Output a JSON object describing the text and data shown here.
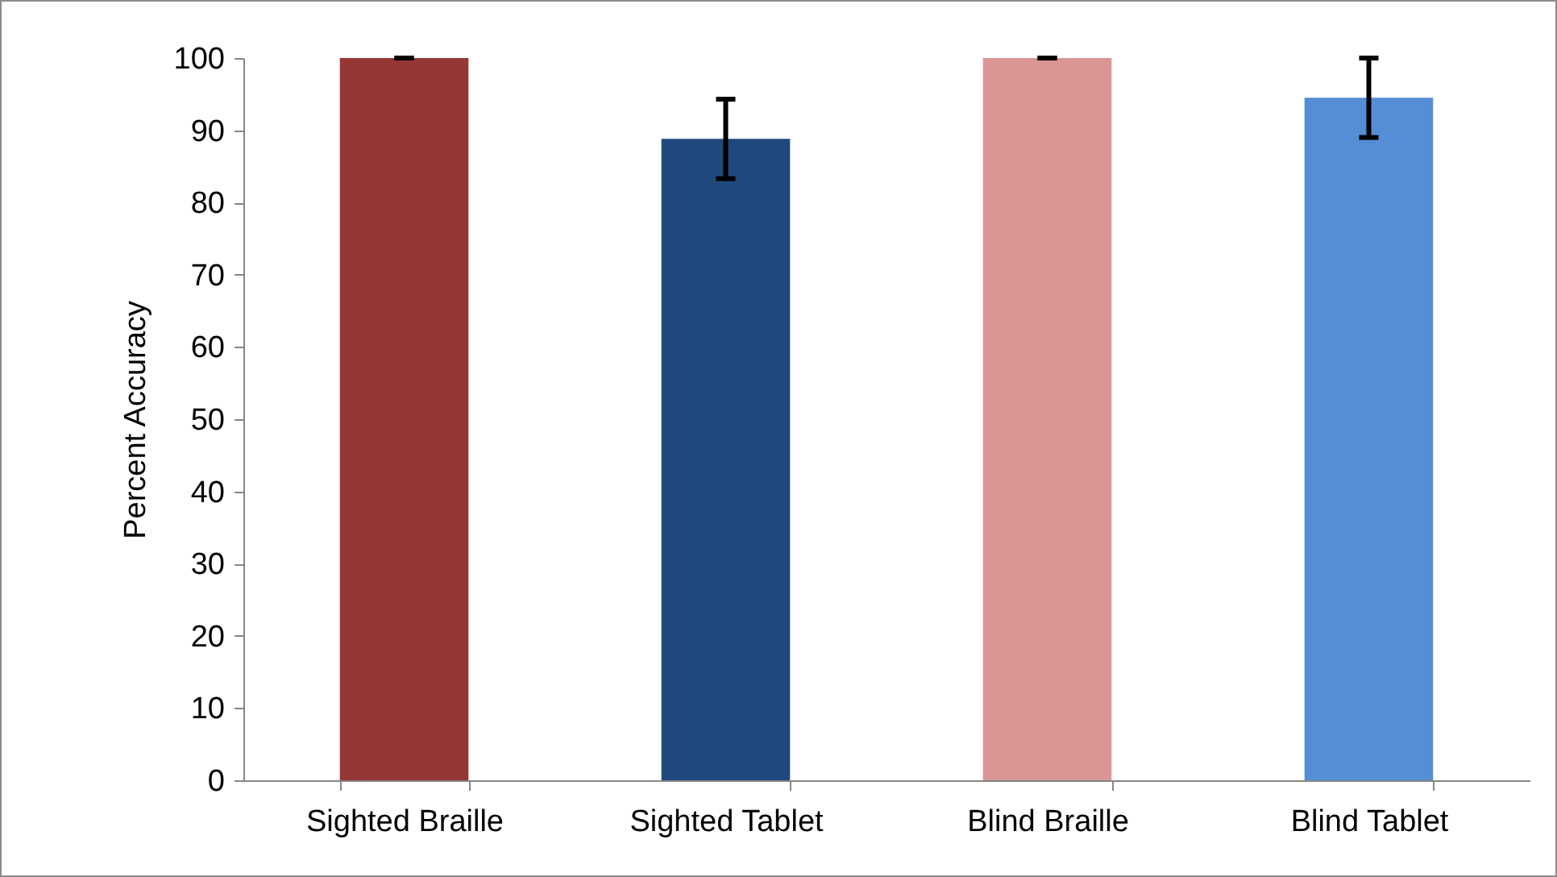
{
  "chart_data": {
    "type": "bar",
    "ylabel": "Percent Accuracy",
    "categories": [
      "Sighted Braille",
      "Sighted Tablet",
      "Blind Braille",
      "Blind Tablet"
    ],
    "values": [
      100,
      88.8,
      100,
      94.5
    ],
    "colors": [
      "#953735",
      "#1f497d",
      "#d99694",
      "#558ed5"
    ],
    "errors": [
      0,
      5.5,
      0,
      5.5
    ],
    "ylim": [
      0,
      100
    ],
    "yticks": [
      0,
      10,
      20,
      30,
      40,
      50,
      60,
      70,
      80,
      90,
      100
    ],
    "grid": false
  }
}
